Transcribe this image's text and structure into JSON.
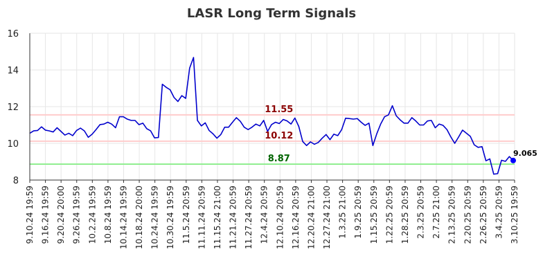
{
  "chart_data": {
    "type": "line",
    "title": "LASR Long Term Signals",
    "xlabel": "",
    "ylabel": "",
    "ylim": [
      8,
      16
    ],
    "yticks": [
      "8",
      "10",
      "12",
      "14",
      "16"
    ],
    "grid": true,
    "x_tick_labels": [
      "9.10.24 19:59",
      "9.16.24 19:59",
      "9.20.24 20:00",
      "9.26.24 19:59",
      "10.2.24 19:59",
      "10.8.24 19:59",
      "10.14.24 19:59",
      "10.18.24 20:00",
      "10.24.24 19:59",
      "10.30.24 19:59",
      "11.5.24 20:59",
      "11.11.24 20:59",
      "11.15.24 21:00",
      "11.21.24 20:59",
      "11.27.24 20:59",
      "12.4.24 20:59",
      "12.10.24 20:59",
      "12.16.24 20:59",
      "12.20.24 21:00",
      "12.27.24 21:00",
      "1.3.25 21:00",
      "1.9.25 20:59",
      "1.15.25 20:59",
      "1.22.25 20:59",
      "1.28.25 20:59",
      "2.3.25 20:59",
      "2.7.25 21:00",
      "2.13.25 20:59",
      "2.20.25 20:59",
      "2.26.25 20:59",
      "3.4.25 20:59",
      "3.10.25 19:59"
    ],
    "series": [
      {
        "color": "#0000cc",
        "values": [
          10.55,
          10.68,
          10.7,
          10.9,
          10.72,
          10.68,
          10.62,
          10.85,
          10.65,
          10.45,
          10.55,
          10.42,
          10.7,
          10.83,
          10.68,
          10.33,
          10.5,
          10.75,
          11.02,
          11.05,
          11.15,
          11.05,
          10.85,
          11.45,
          11.45,
          11.32,
          11.25,
          11.25,
          11.02,
          11.1,
          10.8,
          10.68,
          10.3,
          10.32,
          13.22,
          13.05,
          12.92,
          12.5,
          12.28,
          12.6,
          12.45,
          14.1,
          14.68,
          11.25,
          10.95,
          11.12,
          10.7,
          10.52,
          10.28,
          10.48,
          10.88,
          10.88,
          11.15,
          11.4,
          11.2,
          10.88,
          10.75,
          10.88,
          11.05,
          10.95,
          11.25,
          10.65,
          11.02,
          11.15,
          11.08,
          11.3,
          11.22,
          11.05,
          11.38,
          10.92,
          10.1,
          9.88,
          10.08,
          9.95,
          10.05,
          10.28,
          10.48,
          10.2,
          10.5,
          10.42,
          10.75,
          11.37,
          11.35,
          11.32,
          11.35,
          11.15,
          10.98,
          11.1,
          9.88,
          10.52,
          11.05,
          11.45,
          11.55,
          12.05,
          11.5,
          11.28,
          11.1,
          11.1,
          11.4,
          11.22,
          11.0,
          11.0,
          11.22,
          11.25,
          10.85,
          11.05,
          10.98,
          10.75,
          10.35,
          10.0,
          10.35,
          10.72,
          10.55,
          10.38,
          9.92,
          9.78,
          9.82,
          9.05,
          9.15,
          8.32,
          8.35,
          9.08,
          9.02,
          9.28,
          9.065
        ]
      }
    ],
    "horizontal_lines": [
      {
        "value": 11.55,
        "label": "11.55",
        "line_color": "#ffcccc",
        "label_color": "#8b0000"
      },
      {
        "value": 10.12,
        "label": "10.12",
        "line_color": "#ffcccc",
        "label_color": "#8b0000"
      },
      {
        "value": 8.87,
        "label": "8.87",
        "line_color": "#90ee90",
        "label_color": "#006400"
      }
    ],
    "last_value": {
      "value": 9.065,
      "label": "9.065",
      "color": "#0000ff"
    }
  }
}
